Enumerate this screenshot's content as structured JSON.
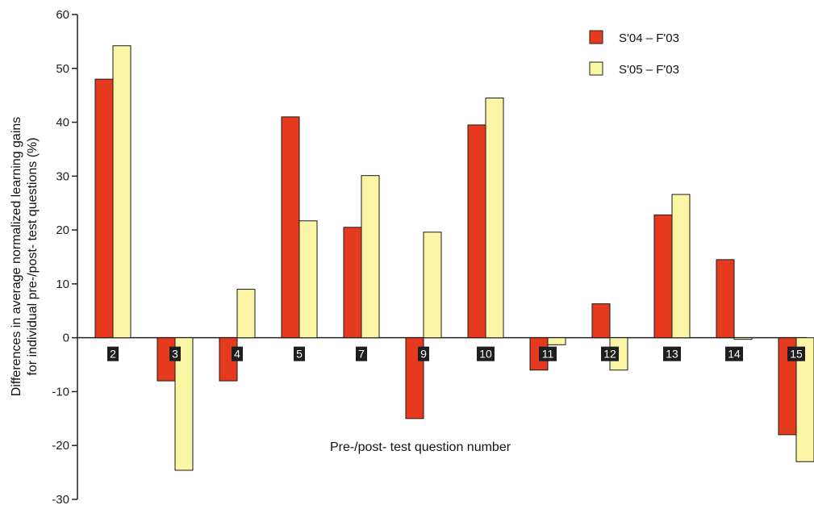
{
  "chart_data": {
    "type": "bar",
    "title": "",
    "xlabel": "Pre-/post- test question number",
    "ylabel": [
      "Differences in average normalized learning gains",
      "for individual pre-/post- test questions (%)"
    ],
    "ylim": [
      -30,
      60
    ],
    "yticks": [
      60,
      50,
      40,
      30,
      20,
      10,
      0,
      -10,
      -20,
      -30
    ],
    "categories": [
      "2",
      "3",
      "4",
      "5",
      "7",
      "9",
      "10",
      "11",
      "12",
      "13",
      "14",
      "15"
    ],
    "series": [
      {
        "name": "S'04 – F'03",
        "color": "#e63a1e",
        "values": [
          48,
          -8,
          -8,
          41,
          20.5,
          -15,
          39.5,
          -6,
          6.3,
          22.8,
          14.5,
          -18
        ]
      },
      {
        "name": "S'05 – F'03",
        "color": "#fbf5a6",
        "values": [
          54.2,
          -24.6,
          9,
          21.7,
          30.1,
          19.6,
          44.5,
          -1.3,
          -6,
          26.6,
          -0.3,
          -23
        ]
      }
    ],
    "legend_position": "top-right",
    "grid": false
  }
}
